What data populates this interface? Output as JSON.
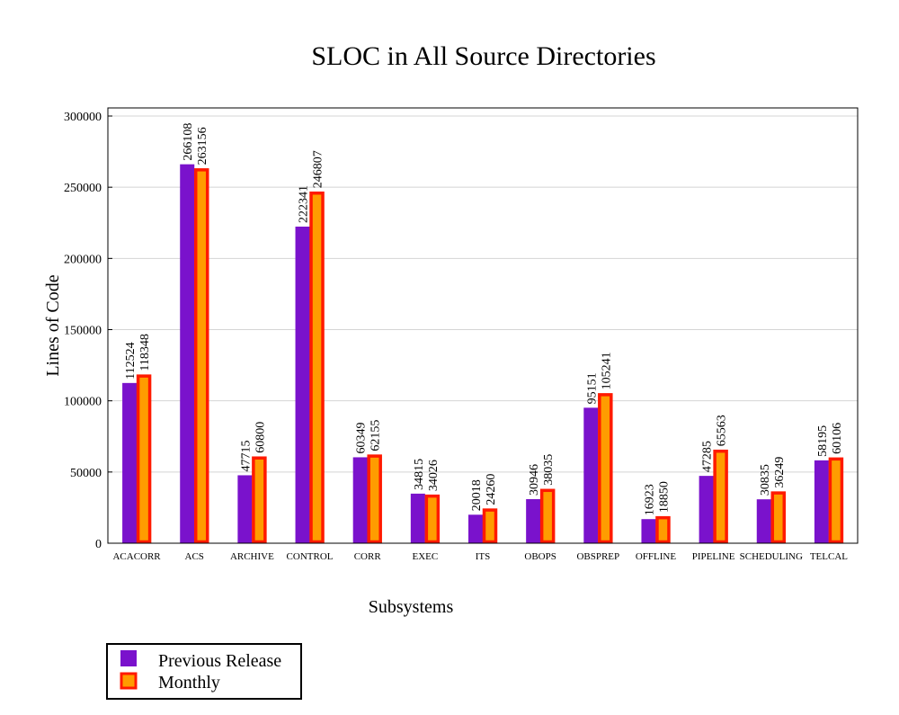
{
  "chart_data": {
    "type": "bar",
    "title": "SLOC in All Source Directories",
    "xlabel": "Subsystems",
    "ylabel": "Lines of Code",
    "ylim": [
      0,
      300000
    ],
    "yticks": [
      0,
      50000,
      100000,
      150000,
      200000,
      250000,
      300000
    ],
    "grid": true,
    "legend_position": "bottom-left",
    "categories": [
      "ACACORR",
      "ACS",
      "ARCHIVE",
      "CONTROL",
      "CORR",
      "EXEC",
      "ITS",
      "OBOPS",
      "OBSPREP",
      "OFFLINE",
      "PIPELINE",
      "SCHEDULING",
      "TELCAL"
    ],
    "series": [
      {
        "name": "Previous Release",
        "color": "#7a12cc",
        "values": [
          112524,
          266108,
          47715,
          222341,
          60349,
          34815,
          20018,
          30946,
          95151,
          16923,
          47285,
          30835,
          58195
        ]
      },
      {
        "name": "Monthly",
        "color": "#ff9c00",
        "border_color": "#ff1a00",
        "values": [
          118348,
          263156,
          60800,
          246807,
          62155,
          34026,
          24260,
          38035,
          105241,
          18850,
          65563,
          36249,
          60106
        ]
      }
    ]
  }
}
